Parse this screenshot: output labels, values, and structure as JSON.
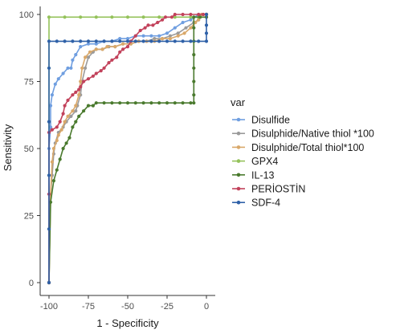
{
  "chart_data": {
    "type": "line",
    "title": "",
    "xlabel": "1 - Specificity",
    "ylabel": "Sensitivity",
    "xlim": [
      -100,
      0
    ],
    "ylim": [
      0,
      100
    ],
    "x_ticks": [
      -100,
      -75,
      -50,
      -25,
      0
    ],
    "x_tick_labels": [
      "-100",
      "-75",
      "-50",
      "-25",
      "0"
    ],
    "y_ticks": [
      0,
      25,
      50,
      75,
      100
    ],
    "y_tick_labels": [
      "0",
      "25",
      "50",
      "75",
      "100"
    ],
    "grid": false,
    "legend_title": "var",
    "legend_position": "right",
    "series": [
      {
        "name": "Disulfide",
        "color": "#6f9ee0",
        "points": [
          [
            -100,
            0
          ],
          [
            -100,
            33
          ],
          [
            -100,
            50
          ],
          [
            -99,
            58
          ],
          [
            -99,
            66
          ],
          [
            -98,
            70
          ],
          [
            -96,
            74
          ],
          [
            -94,
            76
          ],
          [
            -91,
            78
          ],
          [
            -88,
            80
          ],
          [
            -86,
            80
          ],
          [
            -85,
            83
          ],
          [
            -83,
            85
          ],
          [
            -80,
            88
          ],
          [
            -75,
            89
          ],
          [
            -70,
            89
          ],
          [
            -65,
            90
          ],
          [
            -60,
            90
          ],
          [
            -55,
            91
          ],
          [
            -50,
            91
          ],
          [
            -45,
            92
          ],
          [
            -40,
            92
          ],
          [
            -35,
            92
          ],
          [
            -30,
            92
          ],
          [
            -25,
            93
          ],
          [
            -20,
            95
          ],
          [
            -15,
            97
          ],
          [
            -10,
            98
          ],
          [
            -5,
            100
          ],
          [
            0,
            100
          ]
        ]
      },
      {
        "name": "Disulphide/Native thiol *100",
        "color": "#9a9a9a",
        "points": [
          [
            -100,
            0
          ],
          [
            -99,
            33
          ],
          [
            -98,
            40
          ],
          [
            -97,
            48
          ],
          [
            -96,
            52
          ],
          [
            -94,
            56
          ],
          [
            -91,
            58
          ],
          [
            -89,
            60
          ],
          [
            -86,
            62
          ],
          [
            -83,
            64
          ],
          [
            -82,
            66
          ],
          [
            -80,
            70
          ],
          [
            -79,
            75
          ],
          [
            -77,
            80
          ],
          [
            -75,
            84
          ],
          [
            -72,
            86
          ],
          [
            -70,
            87
          ],
          [
            -66,
            87
          ],
          [
            -62,
            88
          ],
          [
            -58,
            88
          ],
          [
            -53,
            89
          ],
          [
            -48,
            89
          ],
          [
            -43,
            90
          ],
          [
            -38,
            90
          ],
          [
            -33,
            91
          ],
          [
            -28,
            91
          ],
          [
            -23,
            92
          ],
          [
            -18,
            93
          ],
          [
            -13,
            95
          ],
          [
            -8,
            97
          ],
          [
            -5,
            98
          ],
          [
            -3,
            100
          ],
          [
            0,
            100
          ]
        ]
      },
      {
        "name": "Disulphide/Total thiol*100",
        "color": "#d9a86a",
        "points": [
          [
            -100,
            0
          ],
          [
            -99,
            33
          ],
          [
            -98,
            45
          ],
          [
            -97,
            50
          ],
          [
            -95,
            53
          ],
          [
            -94,
            55
          ],
          [
            -92,
            57
          ],
          [
            -90,
            60
          ],
          [
            -88,
            62
          ],
          [
            -85,
            64
          ],
          [
            -83,
            66
          ],
          [
            -81,
            70
          ],
          [
            -80,
            75
          ],
          [
            -79,
            80
          ],
          [
            -77,
            84
          ],
          [
            -74,
            86
          ],
          [
            -70,
            87
          ],
          [
            -66,
            87
          ],
          [
            -63,
            88
          ],
          [
            -58,
            88
          ],
          [
            -53,
            89
          ],
          [
            -48,
            89
          ],
          [
            -43,
            90
          ],
          [
            -38,
            90
          ],
          [
            -33,
            90
          ],
          [
            -28,
            91
          ],
          [
            -23,
            91
          ],
          [
            -18,
            92
          ],
          [
            -14,
            93
          ],
          [
            -10,
            95
          ],
          [
            -7,
            97
          ],
          [
            -5,
            98
          ],
          [
            -3,
            100
          ],
          [
            0,
            100
          ]
        ]
      },
      {
        "name": "GPX4",
        "color": "#94c25a",
        "points": [
          [
            -100,
            0
          ],
          [
            -100,
            20
          ],
          [
            -100,
            40
          ],
          [
            -100,
            60
          ],
          [
            -100,
            80
          ],
          [
            -100,
            99
          ],
          [
            -90,
            99
          ],
          [
            -80,
            99
          ],
          [
            -70,
            99
          ],
          [
            -60,
            99
          ],
          [
            -50,
            99
          ],
          [
            -40,
            99
          ],
          [
            -30,
            99
          ],
          [
            -20,
            99
          ],
          [
            -10,
            99
          ],
          [
            -5,
            99
          ],
          [
            0,
            99
          ],
          [
            0,
            100
          ]
        ]
      },
      {
        "name": "IL-13",
        "color": "#4a7a2e",
        "points": [
          [
            -100,
            0
          ],
          [
            -99,
            30
          ],
          [
            -97,
            38
          ],
          [
            -95,
            42
          ],
          [
            -93,
            46
          ],
          [
            -91,
            50
          ],
          [
            -89,
            52
          ],
          [
            -87,
            54
          ],
          [
            -85,
            58
          ],
          [
            -83,
            60
          ],
          [
            -81,
            62
          ],
          [
            -78,
            64
          ],
          [
            -75,
            66
          ],
          [
            -72,
            66
          ],
          [
            -70,
            67
          ],
          [
            -65,
            67
          ],
          [
            -60,
            67
          ],
          [
            -55,
            67
          ],
          [
            -50,
            67
          ],
          [
            -45,
            67
          ],
          [
            -40,
            67
          ],
          [
            -35,
            67
          ],
          [
            -30,
            67
          ],
          [
            -25,
            67
          ],
          [
            -20,
            67
          ],
          [
            -15,
            67
          ],
          [
            -10,
            67
          ],
          [
            -8,
            67
          ],
          [
            -8,
            70
          ],
          [
            -8,
            75
          ],
          [
            -8,
            80
          ],
          [
            -8,
            85
          ],
          [
            -8,
            90
          ],
          [
            -8,
            95
          ],
          [
            -8,
            99
          ],
          [
            -4,
            99
          ],
          [
            0,
            99
          ],
          [
            0,
            100
          ]
        ]
      },
      {
        "name": "PERİOSTİN",
        "color": "#c2425b",
        "points": [
          [
            -100,
            0
          ],
          [
            -100,
            33
          ],
          [
            -100,
            56
          ],
          [
            -98,
            57
          ],
          [
            -95,
            58
          ],
          [
            -93,
            60
          ],
          [
            -91,
            63
          ],
          [
            -90,
            66
          ],
          [
            -88,
            68
          ],
          [
            -85,
            70
          ],
          [
            -83,
            71
          ],
          [
            -81,
            72
          ],
          [
            -80,
            73
          ],
          [
            -78,
            75
          ],
          [
            -75,
            76
          ],
          [
            -72,
            77
          ],
          [
            -70,
            78
          ],
          [
            -67,
            79
          ],
          [
            -65,
            80
          ],
          [
            -62,
            82
          ],
          [
            -60,
            83
          ],
          [
            -57,
            84
          ],
          [
            -55,
            86
          ],
          [
            -53,
            87
          ],
          [
            -50,
            88
          ],
          [
            -48,
            90
          ],
          [
            -45,
            92
          ],
          [
            -42,
            94
          ],
          [
            -39,
            95
          ],
          [
            -37,
            96
          ],
          [
            -34,
            96
          ],
          [
            -31,
            97
          ],
          [
            -28,
            98
          ],
          [
            -26,
            99
          ],
          [
            -22,
            99
          ],
          [
            -20,
            100
          ],
          [
            -15,
            100
          ],
          [
            -10,
            100
          ],
          [
            -5,
            100
          ],
          [
            -2,
            100
          ],
          [
            0,
            100
          ]
        ]
      },
      {
        "name": "SDF-4",
        "color": "#2f61a8",
        "points": [
          [
            -100,
            0
          ],
          [
            -100,
            20
          ],
          [
            -100,
            40
          ],
          [
            -100,
            60
          ],
          [
            -100,
            80
          ],
          [
            -100,
            90
          ],
          [
            -95,
            90
          ],
          [
            -90,
            90
          ],
          [
            -85,
            90
          ],
          [
            -80,
            90
          ],
          [
            -75,
            90
          ],
          [
            -70,
            90
          ],
          [
            -65,
            90
          ],
          [
            -60,
            90
          ],
          [
            -55,
            90
          ],
          [
            -50,
            90
          ],
          [
            -45,
            90
          ],
          [
            -40,
            90
          ],
          [
            -35,
            90
          ],
          [
            -30,
            90
          ],
          [
            -25,
            90
          ],
          [
            -20,
            90
          ],
          [
            -15,
            90
          ],
          [
            -10,
            90
          ],
          [
            -5,
            90
          ],
          [
            0,
            90
          ],
          [
            0,
            93
          ],
          [
            0,
            96
          ],
          [
            0,
            100
          ]
        ]
      }
    ]
  }
}
